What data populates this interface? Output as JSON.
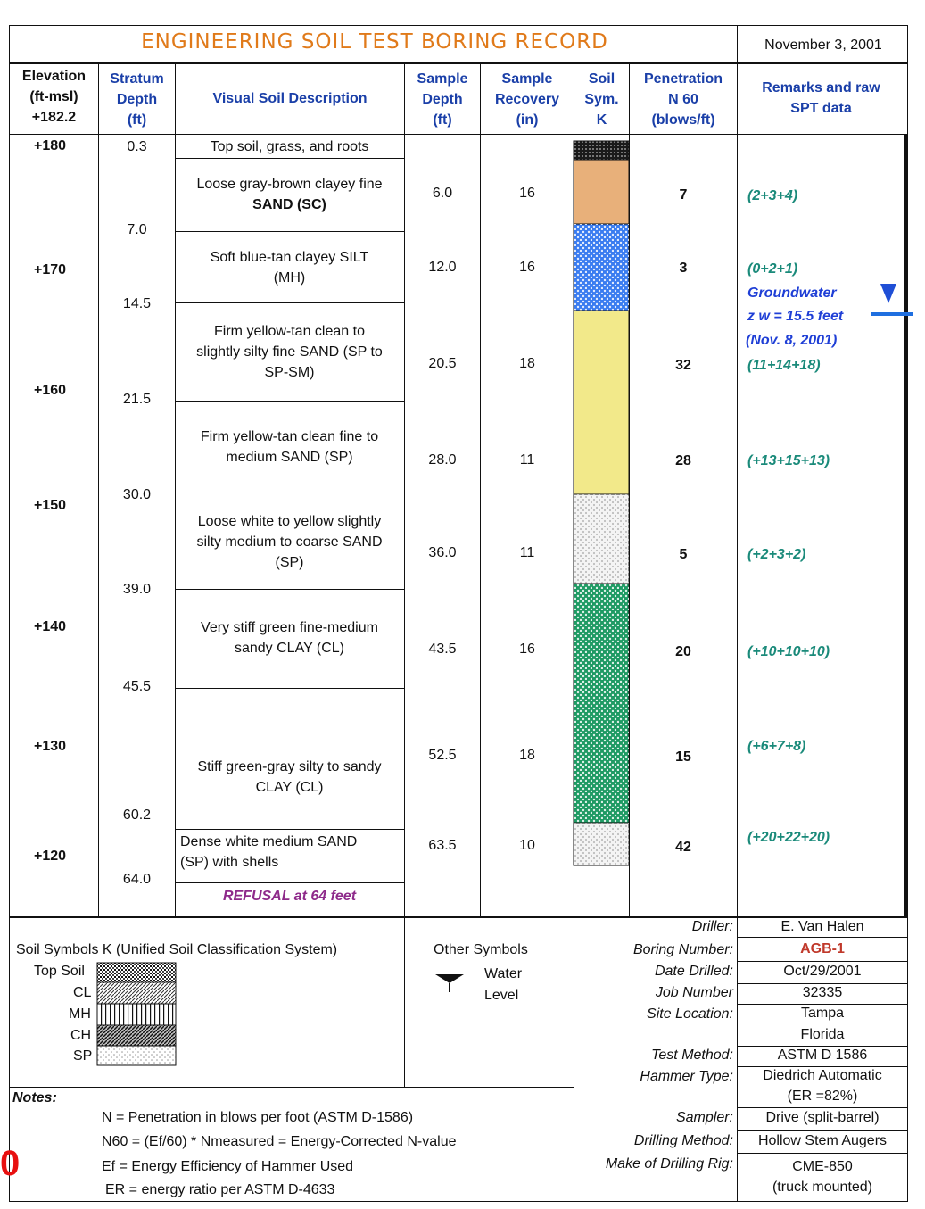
{
  "title": "ENGINEERING SOIL TEST BORING RECORD",
  "date": "November 3, 2001",
  "headers": {
    "elevation": [
      "Elevation",
      "(ft-msl)",
      "+182.2"
    ],
    "stratum": [
      "Stratum",
      "Depth",
      "(ft)"
    ],
    "visual": "Visual Soil Description",
    "sample_depth": [
      "Sample",
      "Depth",
      "(ft)"
    ],
    "sample_recovery": [
      "Sample",
      "Recovery",
      "(in)"
    ],
    "soil_sym": [
      "Soil",
      "Sym.",
      "K"
    ],
    "penetration": [
      "Penetration",
      "N 60",
      "(blows/ft)"
    ],
    "remarks": [
      "Remarks and raw",
      "SPT data"
    ]
  },
  "elevations": [
    "+180",
    "+170",
    "+160",
    "+150",
    "+140",
    "+130",
    "+120"
  ],
  "stratum_depths": [
    "0.3",
    "7.0",
    "14.5",
    "21.5",
    "30.0",
    "39.0",
    "45.5",
    "60.2",
    "64.0"
  ],
  "descriptions": [
    {
      "lines": [
        "Top soil, grass, and roots"
      ]
    },
    {
      "lines": [
        "Loose gray-brown clayey fine",
        "SAND     (SC)"
      ]
    },
    {
      "lines": [
        "Soft blue-tan clayey SILT",
        "(MH)"
      ]
    },
    {
      "lines": [
        "Firm yellow-tan clean to",
        "slightly silty fine SAND (SP to",
        "SP-SM)"
      ]
    },
    {
      "lines": [
        "Firm yellow-tan clean fine to",
        "medium SAND (SP)"
      ]
    },
    {
      "lines": [
        "Loose white to yellow slightly",
        "silty medium to coarse SAND",
        "(SP)"
      ]
    },
    {
      "lines": [
        "Very stiff green fine-medium",
        "sandy CLAY (CL)"
      ]
    },
    {
      "lines": [
        "Stiff green-gray silty to sandy",
        "CLAY (CL)"
      ]
    },
    {
      "lines": [
        "Dense white medium SAND",
        "(SP) with shells"
      ]
    }
  ],
  "refusal": "REFUSAL at 64 feet",
  "samples": [
    {
      "depth": "6.0",
      "recovery": "16",
      "n60": "7",
      "remark": "(2+3+4)"
    },
    {
      "depth": "12.0",
      "recovery": "16",
      "n60": "3",
      "remark": "(0+2+1)"
    },
    {
      "depth": "20.5",
      "recovery": "18",
      "n60": "32",
      "remark": "(11+14+18)"
    },
    {
      "depth": "28.0",
      "recovery": "11",
      "n60": "28",
      "remark": "(+13+15+13)"
    },
    {
      "depth": "36.0",
      "recovery": "11",
      "n60": "5",
      "remark": "(+2+3+2)"
    },
    {
      "depth": "43.5",
      "recovery": "16",
      "n60": "20",
      "remark": "(+10+10+10)"
    },
    {
      "depth": "52.5",
      "recovery": "18",
      "n60": "15",
      "remark": "(+6+7+8)"
    },
    {
      "depth": "63.5",
      "recovery": "10",
      "n60": "42",
      "remark": "(+20+22+20)"
    }
  ],
  "groundwater": {
    "label": "Groundwater",
    "zw": "z w = 15.5 feet",
    "date": "(Nov. 8, 2001)"
  },
  "soil_colors": {
    "topsoil": "#1a1a1a",
    "sc": "#e8b07a",
    "mh": "#3a7cf0",
    "sp_yellow": "#f2e98a",
    "sp_white": "#e6e6e6",
    "cl_green": "#1e9a63"
  },
  "legend": {
    "title": "Soil Symbols K (Unified Soil Classification System)",
    "items": [
      "Top Soil",
      "CL",
      "MH",
      "CH",
      "SP"
    ],
    "other_title": "Other Symbols",
    "water_level": [
      "Water",
      "Level"
    ]
  },
  "info": [
    {
      "label": "Driller:",
      "value": "E. Van Halen"
    },
    {
      "label": "Boring Number:",
      "value": "AGB-1"
    },
    {
      "label": "Date Drilled:",
      "value": "Oct/29/2001"
    },
    {
      "label": "Job Number",
      "value": "32335"
    },
    {
      "label": "Site Location:",
      "value": "Tampa"
    },
    {
      "label": "",
      "value": "Florida"
    },
    {
      "label": "Test Method:",
      "value": "ASTM D 1586"
    },
    {
      "label": "Hammer Type:",
      "value": "Diedrich Automatic"
    },
    {
      "label": "",
      "value": "(ER =82%)"
    },
    {
      "label": "Sampler:",
      "value": "Drive (split-barrel)"
    },
    {
      "label": "Drilling Method:",
      "value": "Hollow Stem Augers"
    },
    {
      "label": "Make of Drilling Rig:",
      "value": "CME-850"
    },
    {
      "label": "",
      "value": "(truck mounted)"
    }
  ],
  "notes": {
    "title": "Notes:",
    "lines": [
      "N = Penetration in blows per foot (ASTM D-1586)",
      "N60 = (Ef/60) * Nmeasured = Energy-Corrected N-value",
      "Ef = Energy Efficiency of Hammer Used",
      "ER = energy ratio per ASTM D-4633"
    ]
  },
  "corner_mark": "0"
}
